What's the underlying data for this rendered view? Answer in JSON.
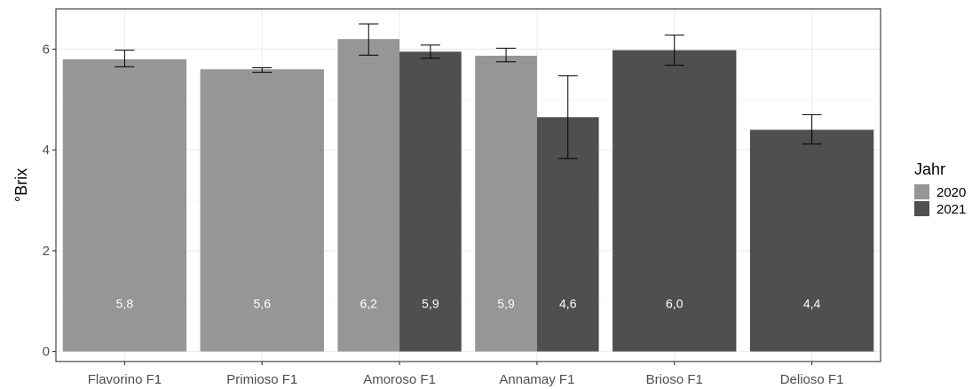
{
  "chart_data": {
    "type": "bar",
    "ylabel": "°Brix",
    "xlabel": "",
    "ylim": [
      -0.2,
      6.8
    ],
    "yticks": [
      0,
      2,
      4,
      6
    ],
    "grid": true,
    "legend": {
      "title": "Jahr",
      "placement": "right",
      "entries": [
        {
          "name": "2020",
          "color": "#969696"
        },
        {
          "name": "2021",
          "color": "#4f4f4f"
        }
      ]
    },
    "categories": [
      "Flavorino F1",
      "Primioso F1",
      "Amoroso F1",
      "Annamay F1",
      "Brioso F1",
      "Delioso F1"
    ],
    "bars": [
      {
        "category": "Flavorino F1",
        "year": "2020",
        "value": 5.8,
        "label": "5,8",
        "error_low": 5.65,
        "error_high": 5.98
      },
      {
        "category": "Primioso F1",
        "year": "2020",
        "value": 5.6,
        "label": "5,6",
        "error_low": 5.54,
        "error_high": 5.63
      },
      {
        "category": "Amoroso F1",
        "year": "2020",
        "value": 6.2,
        "label": "6,2",
        "error_low": 5.88,
        "error_high": 6.5
      },
      {
        "category": "Amoroso F1",
        "year": "2021",
        "value": 5.95,
        "label": "5,9",
        "error_low": 5.82,
        "error_high": 6.08
      },
      {
        "category": "Annamay F1",
        "year": "2020",
        "value": 5.87,
        "label": "5,9",
        "error_low": 5.75,
        "error_high": 6.02
      },
      {
        "category": "Annamay F1",
        "year": "2021",
        "value": 4.65,
        "label": "4,6",
        "error_low": 3.83,
        "error_high": 5.47
      },
      {
        "category": "Brioso F1",
        "year": "2021",
        "value": 5.98,
        "label": "6,0",
        "error_low": 5.68,
        "error_high": 6.28
      },
      {
        "category": "Delioso F1",
        "year": "2021",
        "value": 4.4,
        "label": "4,4",
        "error_low": 4.12,
        "error_high": 4.7
      }
    ]
  }
}
